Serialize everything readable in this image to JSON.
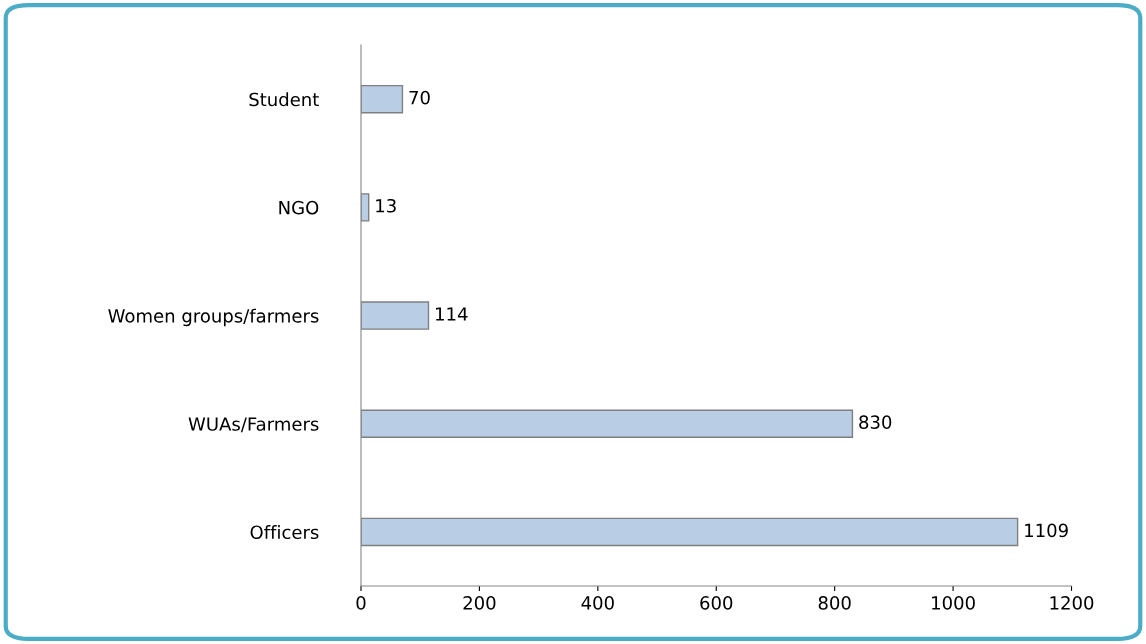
{
  "chart_data": {
    "type": "bar",
    "orientation": "horizontal",
    "categories": [
      "Student",
      "NGO",
      "Women groups/farmers",
      "WUAs/Farmers",
      "Officers"
    ],
    "values": [
      70,
      13,
      114,
      830,
      1109
    ],
    "color": "#b9cde5",
    "xlim": [
      0,
      1200
    ],
    "xticks": [
      0,
      200,
      400,
      600,
      800,
      1000,
      1200
    ],
    "data_labels": true,
    "grid": false,
    "legend": false
  }
}
